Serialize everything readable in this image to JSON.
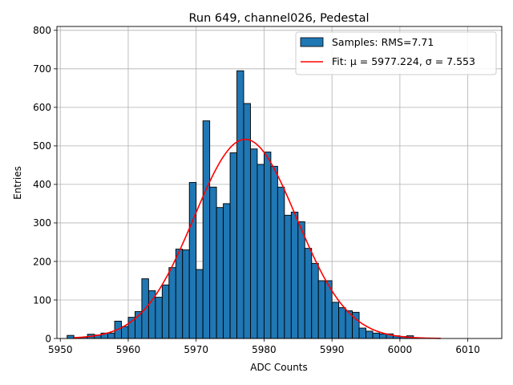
{
  "chart_data": {
    "type": "bar",
    "title": "Run 649, channel026, Pedestal",
    "xlabel": "ADC Counts",
    "ylabel": "Entries",
    "xlim": [
      5949.5,
      6015
    ],
    "ylim": [
      0,
      810
    ],
    "grid": true,
    "legend_position": "top-right",
    "x_ticks": [
      5950,
      5960,
      5970,
      5980,
      5990,
      6000,
      6010
    ],
    "y_ticks": [
      0,
      100,
      200,
      300,
      400,
      500,
      600,
      700,
      800
    ],
    "bar_color": "#1f77b4",
    "fit_color": "#ff0000",
    "legend": {
      "samples_label": "Samples: RMS=7.71",
      "fit_label": "Fit: μ = 5977.224, σ = 7.553"
    },
    "bins": {
      "x_left": [
        5951,
        5952,
        5953,
        5954,
        5955,
        5956,
        5957,
        5958,
        5959,
        5960,
        5961,
        5962,
        5963,
        5964,
        5965,
        5966,
        5967,
        5968,
        5969,
        5970,
        5971,
        5972,
        5973,
        5974,
        5975,
        5976,
        5977,
        5978,
        5979,
        5980,
        5981,
        5982,
        5983,
        5984,
        5985,
        5986,
        5987,
        5988,
        5989,
        5990,
        5991,
        5992,
        5993,
        5994,
        5995,
        5996,
        5997,
        5998,
        5999,
        6000,
        6001,
        6002
      ],
      "values": [
        8,
        2,
        3,
        11,
        9,
        14,
        14,
        45,
        31,
        55,
        70,
        155,
        124,
        107,
        139,
        184,
        232,
        230,
        405,
        179,
        565,
        393,
        340,
        350,
        482,
        695,
        610,
        492,
        452,
        484,
        447,
        393,
        320,
        328,
        303,
        234,
        195,
        150,
        150,
        94,
        80,
        72,
        68,
        27,
        19,
        14,
        12,
        12,
        7,
        5,
        7,
        1
      ]
    },
    "fit": {
      "mu": 5977.224,
      "sigma": 7.553,
      "amplitude": 517,
      "x_range": [
        5952,
        6006
      ]
    }
  }
}
